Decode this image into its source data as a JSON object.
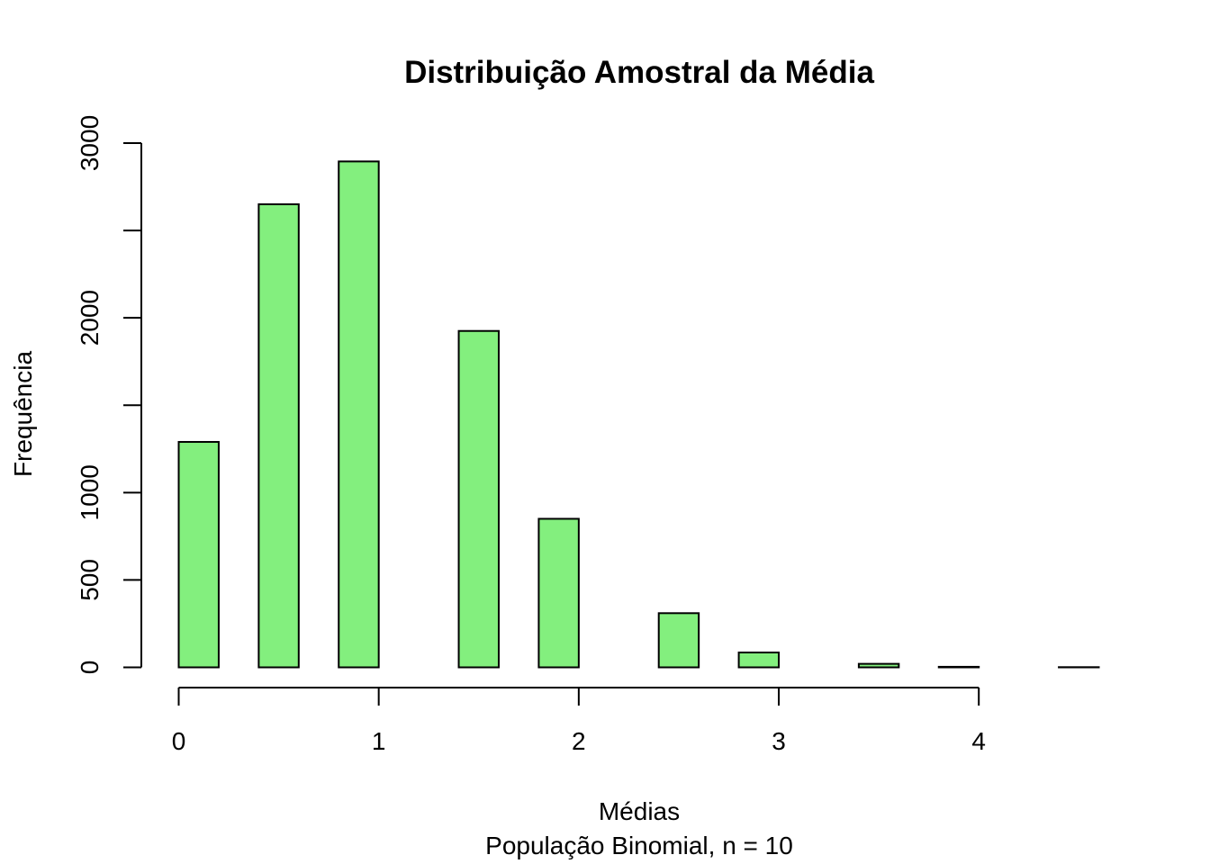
{
  "chart_data": {
    "type": "bar",
    "title": "Distribuição Amostral da Média",
    "xlabel": "Médias",
    "subtitle": "População Binomial, n = 10",
    "ylabel": "Frequência",
    "bar_color": "#83EF7E",
    "xlim": [
      0,
      4.6
    ],
    "ylim": [
      0,
      3000
    ],
    "xticks": [
      0,
      1,
      2,
      3,
      4
    ],
    "xtick_labels": [
      "0",
      "1",
      "2",
      "3",
      "4"
    ],
    "yticks": [
      0,
      500,
      1000,
      1500,
      2000,
      2500,
      3000
    ],
    "ytick_labels": [
      "0",
      "500",
      "1000",
      "",
      "2000",
      "",
      "3000"
    ],
    "bars": [
      {
        "x0": 0.0,
        "x1": 0.2,
        "value": 1290
      },
      {
        "x0": 0.4,
        "x1": 0.6,
        "value": 2650
      },
      {
        "x0": 0.8,
        "x1": 1.0,
        "value": 2895
      },
      {
        "x0": 1.2,
        "x1": 1.4,
        "value": 0
      },
      {
        "x0": 1.4,
        "x1": 1.6,
        "value": 1925
      },
      {
        "x0": 1.8,
        "x1": 2.0,
        "value": 850
      },
      {
        "x0": 2.2,
        "x1": 2.4,
        "value": 0
      },
      {
        "x0": 2.4,
        "x1": 2.6,
        "value": 310
      },
      {
        "x0": 2.8,
        "x1": 3.0,
        "value": 85
      },
      {
        "x0": 3.2,
        "x1": 3.4,
        "value": 0
      },
      {
        "x0": 3.4,
        "x1": 3.6,
        "value": 20
      },
      {
        "x0": 3.8,
        "x1": 4.0,
        "value": 3
      },
      {
        "x0": 4.2,
        "x1": 4.4,
        "value": 0
      },
      {
        "x0": 4.4,
        "x1": 4.6,
        "value": 1
      }
    ]
  }
}
